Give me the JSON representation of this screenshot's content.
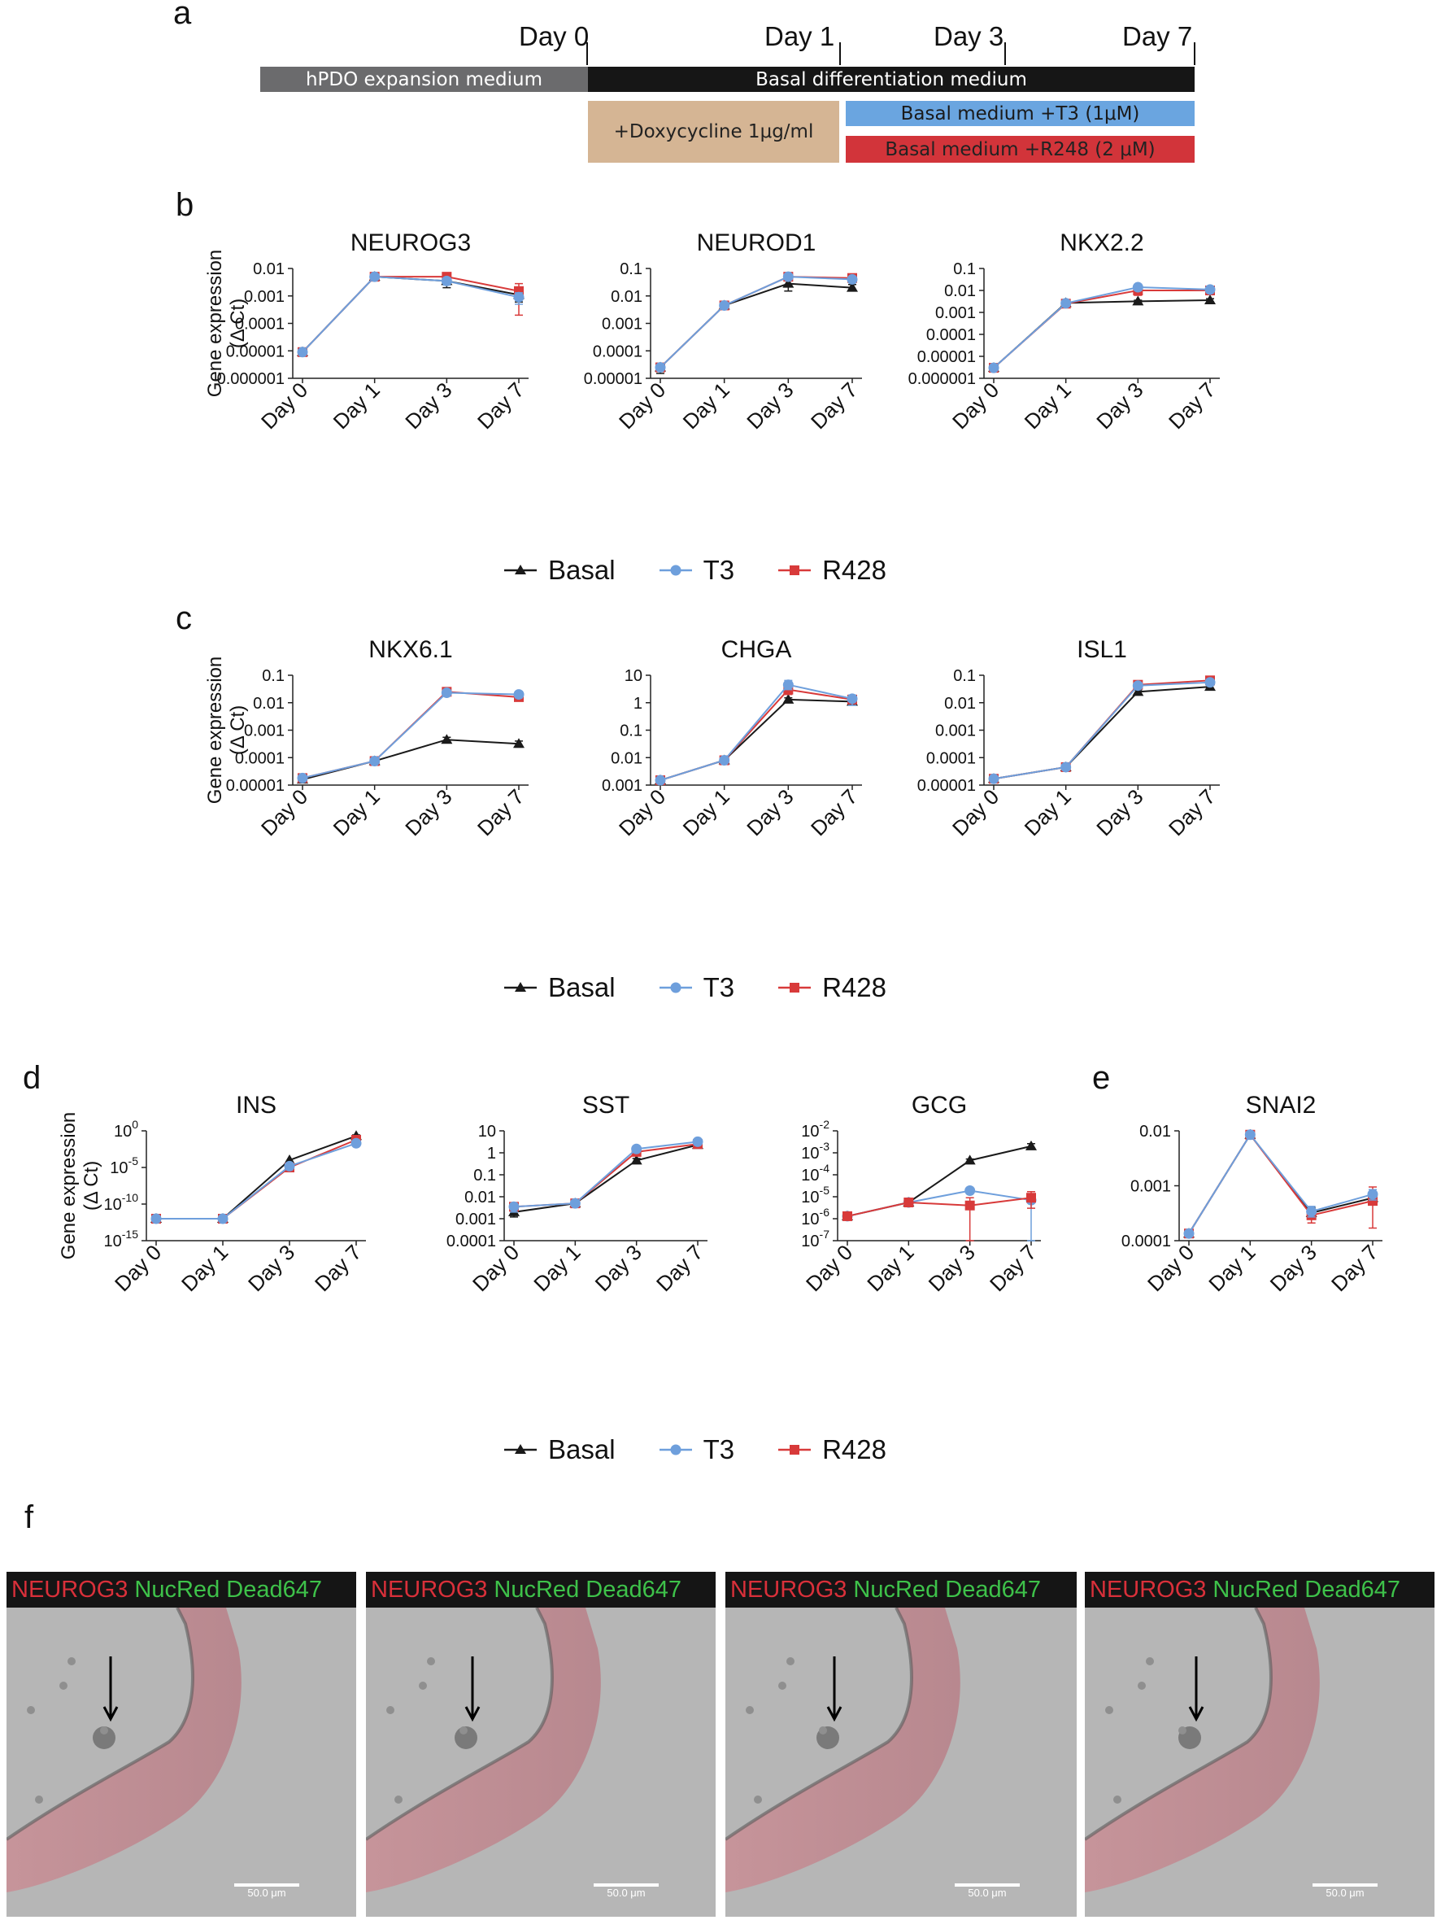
{
  "panels": {
    "a": "a",
    "b": "b",
    "c": "c",
    "d": "d",
    "e": "e",
    "f": "f"
  },
  "timeline": {
    "days": [
      "Day 0",
      "Day 1",
      "Day 3",
      "Day 7"
    ],
    "bars": [
      {
        "label": "hPDO expansion medium",
        "color": "#6b6b6d"
      },
      {
        "label": "Basal differentiation medium",
        "color": "#161616"
      },
      {
        "label": "+Doxycycline 1μg/ml",
        "color": "#d5b594"
      },
      {
        "label": "Basal medium +T3 (1μM)",
        "color": "#6aa5e0"
      },
      {
        "label": "Basal medium +R248 (2 μM)",
        "color": "#d2343a"
      }
    ]
  },
  "colors": {
    "Basal": "#1a1a1a",
    "T3": "#6e9fdc",
    "R428": "#d83a3a"
  },
  "legend": [
    {
      "name": "Basal",
      "marker": "triangle"
    },
    {
      "name": "T3",
      "marker": "circle"
    },
    {
      "name": "R428",
      "marker": "square"
    }
  ],
  "ylabel": {
    "line1": "Gene expression",
    "line2": "(Δ Ct)"
  },
  "chart_data": [
    {
      "id": "NEUROG3",
      "type": "line",
      "title": "NEUROG3",
      "categories": [
        "Day 0",
        "Day 1",
        "Day 3",
        "Day 7"
      ],
      "yscale": "log",
      "ylim": [
        1e-06,
        0.01
      ],
      "yticks": [
        {
          "v": 1e-06,
          "t": "0.000001"
        },
        {
          "v": 1e-05,
          "t": "0.00001"
        },
        {
          "v": 0.0001,
          "t": "0.0001"
        },
        {
          "v": 0.001,
          "t": "0.001"
        },
        {
          "v": 0.01,
          "t": "0.01"
        }
      ],
      "series": [
        {
          "name": "Basal",
          "values": [
            9e-06,
            0.005,
            0.0035,
            0.0011
          ],
          "err_lo": [
            null,
            null,
            0.002,
            0.0006
          ],
          "err_hi": [
            null,
            null,
            0.005,
            0.0017
          ]
        },
        {
          "name": "R428",
          "values": [
            9e-06,
            0.005,
            0.005,
            0.0015
          ],
          "err_lo": [
            null,
            null,
            0.0035,
            0.0002
          ],
          "err_hi": [
            null,
            null,
            0.006,
            0.0028
          ]
        },
        {
          "name": "T3",
          "values": [
            9e-06,
            0.005,
            0.0035,
            0.0009
          ],
          "err_lo": [
            null,
            null,
            0.0025,
            0.0005
          ],
          "err_hi": [
            null,
            null,
            0.0045,
            0.0013
          ]
        }
      ]
    },
    {
      "id": "NEUROD1",
      "type": "line",
      "title": "NEUROD1",
      "categories": [
        "Day 0",
        "Day 1",
        "Day 3",
        "Day 7"
      ],
      "yscale": "log",
      "ylim": [
        1e-05,
        0.1
      ],
      "yticks": [
        {
          "v": 1e-05,
          "t": "0.00001"
        },
        {
          "v": 0.0001,
          "t": "0.0001"
        },
        {
          "v": 0.001,
          "t": "0.001"
        },
        {
          "v": 0.01,
          "t": "0.01"
        },
        {
          "v": 0.1,
          "t": "0.1"
        }
      ],
      "series": [
        {
          "name": "Basal",
          "values": [
            2.5e-05,
            0.0045,
            0.028,
            0.02
          ],
          "err_lo": [
            1.5e-05,
            null,
            0.015,
            0.015
          ],
          "err_hi": [
            3.5e-05,
            null,
            0.04,
            0.026
          ]
        },
        {
          "name": "R428",
          "values": [
            2.5e-05,
            0.0045,
            0.05,
            0.045
          ],
          "err_lo": [
            null,
            null,
            0.04,
            0.035
          ],
          "err_hi": [
            null,
            null,
            0.06,
            0.055
          ]
        },
        {
          "name": "T3",
          "values": [
            2.5e-05,
            0.0045,
            0.05,
            0.04
          ],
          "err_lo": [
            null,
            null,
            0.04,
            0.03
          ],
          "err_hi": [
            null,
            null,
            0.06,
            0.05
          ]
        }
      ]
    },
    {
      "id": "NKX2.2",
      "type": "line",
      "title": "NKX2.2",
      "categories": [
        "Day 0",
        "Day 1",
        "Day 3",
        "Day 7"
      ],
      "yscale": "log",
      "ylim": [
        1e-06,
        0.1
      ],
      "yticks": [
        {
          "v": 1e-06,
          "t": "0.000001"
        },
        {
          "v": 1e-05,
          "t": "0.00001"
        },
        {
          "v": 0.0001,
          "t": "0.0001"
        },
        {
          "v": 0.001,
          "t": "0.001"
        },
        {
          "v": 0.01,
          "t": "0.01"
        },
        {
          "v": 0.1,
          "t": "0.1"
        }
      ],
      "series": [
        {
          "name": "Basal",
          "values": [
            3e-06,
            0.0027,
            0.0032,
            0.0036
          ],
          "err_lo": [
            2e-06,
            null,
            0.0028,
            0.003
          ],
          "err_hi": [
            4e-06,
            null,
            0.0036,
            0.0042
          ]
        },
        {
          "name": "R428",
          "values": [
            3e-06,
            0.0025,
            0.01,
            0.01
          ],
          "err_lo": [
            null,
            null,
            0.006,
            0.007
          ],
          "err_hi": [
            null,
            null,
            0.014,
            0.013
          ]
        },
        {
          "name": "T3",
          "values": [
            3e-06,
            0.0026,
            0.014,
            0.011
          ],
          "err_lo": [
            null,
            null,
            0.01,
            0.008
          ],
          "err_hi": [
            null,
            null,
            0.019,
            0.014
          ]
        }
      ]
    },
    {
      "id": "NKX6.1",
      "type": "line",
      "title": "NKX6.1",
      "categories": [
        "Day 0",
        "Day 1",
        "Day 3",
        "Day 7"
      ],
      "yscale": "log",
      "ylim": [
        1e-05,
        0.1
      ],
      "yticks": [
        {
          "v": 1e-05,
          "t": "0.00001"
        },
        {
          "v": 0.0001,
          "t": "0.0001"
        },
        {
          "v": 0.001,
          "t": "0.001"
        },
        {
          "v": 0.01,
          "t": "0.01"
        },
        {
          "v": 0.1,
          "t": "0.1"
        }
      ],
      "series": [
        {
          "name": "Basal",
          "values": [
            1.6e-05,
            7.5e-05,
            0.00045,
            0.00032
          ],
          "err_lo": [
            1.3e-05,
            null,
            0.00035,
            0.00024
          ],
          "err_hi": [
            1.9e-05,
            null,
            0.00055,
            0.0004
          ]
        },
        {
          "name": "R428",
          "values": [
            1.8e-05,
            7.5e-05,
            0.025,
            0.016
          ],
          "err_lo": [
            null,
            null,
            0.02,
            0.012
          ],
          "err_hi": [
            null,
            null,
            0.03,
            0.02
          ]
        },
        {
          "name": "T3",
          "values": [
            1.8e-05,
            7.5e-05,
            0.023,
            0.02
          ],
          "err_lo": [
            null,
            null,
            0.018,
            0.015
          ],
          "err_hi": [
            null,
            null,
            0.028,
            0.026
          ]
        }
      ]
    },
    {
      "id": "CHGA",
      "type": "line",
      "title": "CHGA",
      "categories": [
        "Day 0",
        "Day 1",
        "Day 3",
        "Day 7"
      ],
      "yscale": "log",
      "ylim": [
        0.001,
        10
      ],
      "yticks": [
        {
          "v": 0.001,
          "t": "0.001"
        },
        {
          "v": 0.01,
          "t": "0.01"
        },
        {
          "v": 0.1,
          "t": "0.1"
        },
        {
          "v": 1,
          "t": "1"
        },
        {
          "v": 10,
          "t": "10"
        }
      ],
      "series": [
        {
          "name": "Basal",
          "values": [
            0.0015,
            0.008,
            1.3,
            1.1
          ],
          "err_lo": [
            null,
            null,
            1.1,
            0.9
          ],
          "err_hi": [
            null,
            null,
            1.5,
            1.3
          ]
        },
        {
          "name": "R428",
          "values": [
            0.0015,
            0.008,
            3.0,
            1.3
          ],
          "err_lo": [
            null,
            null,
            2.0,
            1.0
          ],
          "err_hi": [
            null,
            null,
            4.0,
            1.6
          ]
        },
        {
          "name": "T3",
          "values": [
            0.0015,
            0.008,
            4.5,
            1.4
          ],
          "err_lo": [
            null,
            null,
            3.0,
            0.8
          ],
          "err_hi": [
            null,
            null,
            6.5,
            1.9
          ]
        }
      ]
    },
    {
      "id": "ISL1",
      "type": "line",
      "title": "ISL1",
      "categories": [
        "Day 0",
        "Day 1",
        "Day 3",
        "Day 7"
      ],
      "yscale": "log",
      "ylim": [
        1e-05,
        0.1
      ],
      "yticks": [
        {
          "v": 1e-05,
          "t": "0.00001"
        },
        {
          "v": 0.0001,
          "t": "0.0001"
        },
        {
          "v": 0.001,
          "t": "0.001"
        },
        {
          "v": 0.01,
          "t": "0.01"
        },
        {
          "v": 0.1,
          "t": "0.1"
        }
      ],
      "series": [
        {
          "name": "Basal",
          "values": [
            1.7e-05,
            4.5e-05,
            0.025,
            0.038
          ],
          "err_lo": [
            null,
            null,
            0.021,
            0.033
          ],
          "err_hi": [
            null,
            null,
            0.029,
            0.043
          ]
        },
        {
          "name": "R428",
          "values": [
            1.7e-05,
            4.5e-05,
            0.045,
            0.065
          ],
          "err_lo": [
            null,
            null,
            0.038,
            0.055
          ],
          "err_hi": [
            null,
            null,
            0.052,
            0.075
          ]
        },
        {
          "name": "T3",
          "values": [
            1.7e-05,
            4.5e-05,
            0.042,
            0.055
          ],
          "err_lo": [
            null,
            null,
            0.035,
            0.045
          ],
          "err_hi": [
            null,
            null,
            0.05,
            0.065
          ]
        }
      ]
    },
    {
      "id": "INS",
      "type": "line",
      "title": "INS",
      "categories": [
        "Day 0",
        "Day 1",
        "Day 3",
        "Day 7"
      ],
      "yscale": "log",
      "ylim": [
        1e-15,
        1
      ],
      "yticks": [
        {
          "v": 1e-15,
          "t": "10",
          "sup": "-15"
        },
        {
          "v": 1e-10,
          "t": "10",
          "sup": "-10"
        },
        {
          "v": 1e-05,
          "t": "10",
          "sup": "-5"
        },
        {
          "v": 1,
          "t": "10",
          "sup": "0"
        }
      ],
      "series": [
        {
          "name": "Basal",
          "values": [
            1e-12,
            1e-12,
            0.0001,
            0.2
          ],
          "err_lo": [
            null,
            null,
            null,
            0.15
          ],
          "err_hi": [
            null,
            null,
            null,
            0.28
          ]
        },
        {
          "name": "R428",
          "values": [
            1e-12,
            1e-12,
            1e-05,
            0.06
          ],
          "err_lo": [
            null,
            null,
            null,
            0.035
          ],
          "err_hi": [
            null,
            null,
            null,
            0.09
          ]
        },
        {
          "name": "T3",
          "values": [
            1e-12,
            1e-12,
            1.5e-05,
            0.02
          ],
          "err_lo": [
            null,
            null,
            null,
            0.012
          ],
          "err_hi": [
            null,
            null,
            null,
            0.03
          ]
        }
      ]
    },
    {
      "id": "SST",
      "type": "line",
      "title": "SST",
      "categories": [
        "Day 0",
        "Day 1",
        "Day 3",
        "Day 7"
      ],
      "yscale": "log",
      "ylim": [
        0.0001,
        10
      ],
      "yticks": [
        {
          "v": 0.0001,
          "t": "0.0001"
        },
        {
          "v": 0.001,
          "t": "0.001"
        },
        {
          "v": 0.01,
          "t": "0.01"
        },
        {
          "v": 0.1,
          "t": "0.1"
        },
        {
          "v": 1,
          "t": "1"
        },
        {
          "v": 10,
          "t": "10"
        }
      ],
      "series": [
        {
          "name": "Basal",
          "values": [
            0.002,
            0.005,
            0.45,
            2.3
          ],
          "err_lo": [
            0.0012,
            null,
            0.35,
            1.9
          ],
          "err_hi": [
            0.003,
            null,
            0.55,
            2.7
          ]
        },
        {
          "name": "R428",
          "values": [
            0.0035,
            0.005,
            1.1,
            2.5
          ],
          "err_lo": [
            null,
            null,
            0.9,
            2.1
          ],
          "err_hi": [
            null,
            null,
            1.3,
            2.9
          ]
        },
        {
          "name": "T3",
          "values": [
            0.0035,
            0.005,
            1.5,
            3.2
          ],
          "err_lo": [
            0.002,
            null,
            1.2,
            2.7
          ],
          "err_hi": [
            0.005,
            null,
            1.8,
            3.7
          ]
        }
      ]
    },
    {
      "id": "GCG",
      "type": "line",
      "title": "GCG",
      "categories": [
        "Day 0",
        "Day 1",
        "Day 3",
        "Day 7"
      ],
      "yscale": "log",
      "ylim": [
        1e-07,
        0.01
      ],
      "yticks": [
        {
          "v": 1e-07,
          "t": "10",
          "sup": "-7"
        },
        {
          "v": 1e-06,
          "t": "10",
          "sup": "-6"
        },
        {
          "v": 1e-05,
          "t": "10",
          "sup": "-5"
        },
        {
          "v": 0.0001,
          "t": "10",
          "sup": "-4"
        },
        {
          "v": 0.001,
          "t": "10",
          "sup": "-3"
        },
        {
          "v": 0.01,
          "t": "10",
          "sup": "-2"
        }
      ],
      "series": [
        {
          "name": "Basal",
          "values": [
            1.3e-06,
            5.5e-06,
            0.00045,
            0.002
          ],
          "err_lo": [
            null,
            null,
            0.00038,
            0.0015
          ],
          "err_hi": [
            null,
            null,
            0.00052,
            0.0026
          ]
        },
        {
          "name": "T3",
          "values": [
            1.3e-06,
            5.5e-06,
            1.9e-05,
            7e-06
          ],
          "err_lo": [
            null,
            null,
            null,
            1e-07
          ],
          "err_hi": [
            null,
            null,
            null,
            1.2e-05
          ]
        },
        {
          "name": "R428",
          "values": [
            1.3e-06,
            5.5e-06,
            4e-06,
            9e-06
          ],
          "err_lo": [
            null,
            null,
            1e-07,
            3e-06
          ],
          "err_hi": [
            null,
            null,
            9e-06,
            1.7e-05
          ]
        }
      ]
    },
    {
      "id": "SNAI2",
      "type": "line",
      "title": "SNAI2",
      "categories": [
        "Day 0",
        "Day 1",
        "Day 3",
        "Day 7"
      ],
      "yscale": "log",
      "ylim": [
        0.0001,
        0.01
      ],
      "yticks": [
        {
          "v": 0.0001,
          "t": "0.0001"
        },
        {
          "v": 0.001,
          "t": "0.001"
        },
        {
          "v": 0.01,
          "t": "0.01"
        }
      ],
      "series": [
        {
          "name": "Basal",
          "values": [
            0.000135,
            0.0085,
            0.00032,
            0.0006
          ],
          "err_lo": [
            null,
            null,
            0.00025,
            0.00045
          ],
          "err_hi": [
            null,
            null,
            0.0004,
            0.00075
          ]
        },
        {
          "name": "R428",
          "values": [
            0.000135,
            0.0085,
            0.00029,
            0.00053
          ],
          "err_lo": [
            null,
            null,
            0.00021,
            0.00017
          ],
          "err_hi": [
            null,
            null,
            0.00037,
            0.00095
          ]
        },
        {
          "name": "T3",
          "values": [
            0.000135,
            0.0085,
            0.00034,
            0.0007
          ],
          "err_lo": [
            null,
            null,
            0.00027,
            0.00055
          ],
          "err_hi": [
            null,
            null,
            0.00042,
            0.00085
          ]
        }
      ]
    }
  ],
  "microscopy": {
    "label_red": "NEUROG3",
    "label_green": "NucRed Dead647",
    "scale_text": "50.0 μm"
  }
}
